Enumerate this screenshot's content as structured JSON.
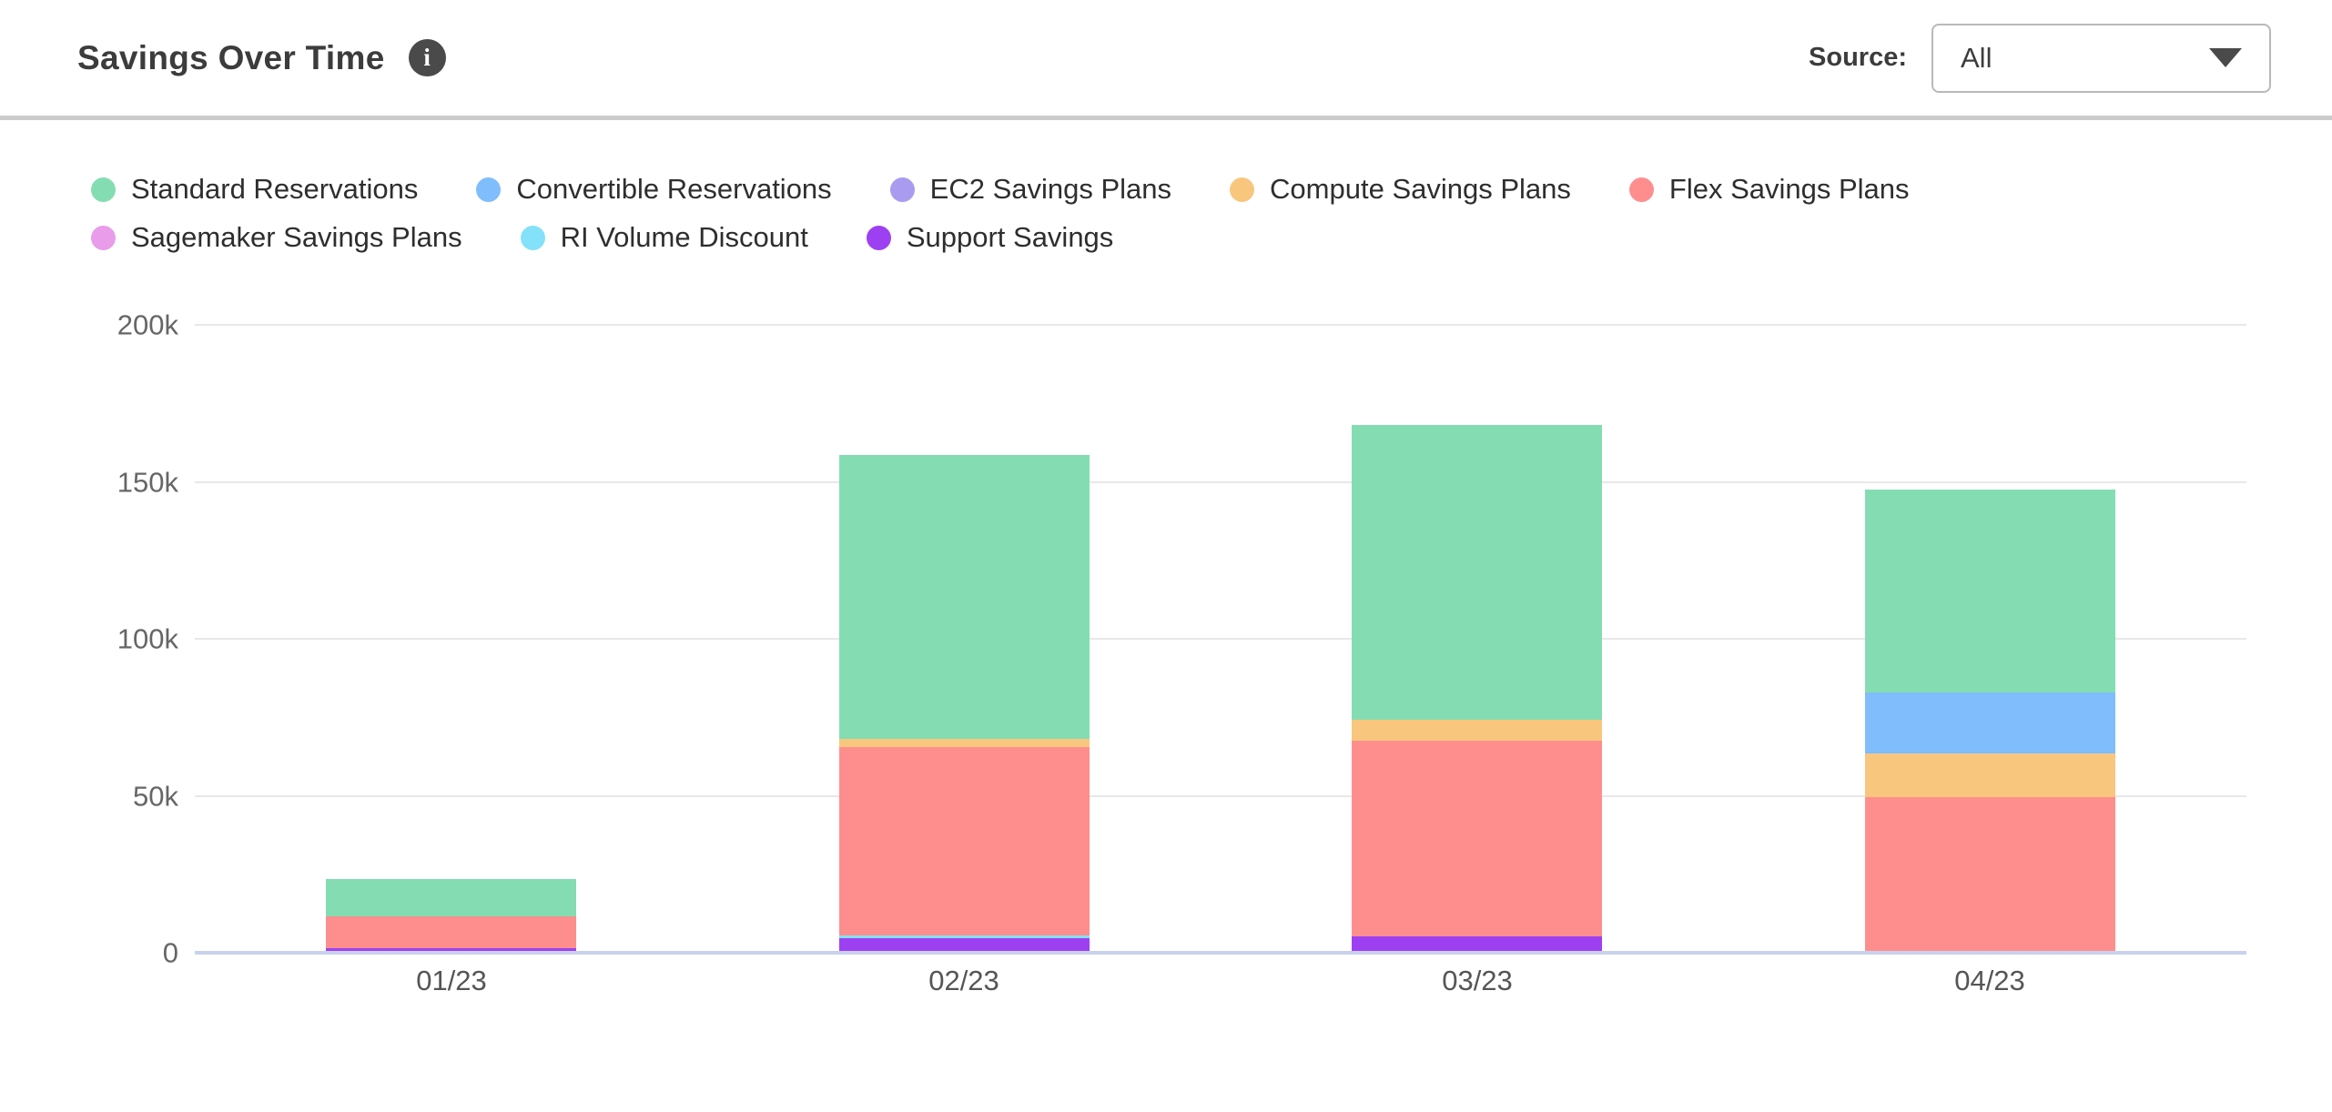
{
  "header": {
    "title": "Savings Over Time",
    "info_icon_glyph": "i",
    "source_label": "Source:",
    "source_value": "All"
  },
  "colors": {
    "axis_line": "#C9D1EC",
    "gridline": "#E8E8E8",
    "divider": "#CBCBCB",
    "info_icon_bg": "#4A4A4A"
  },
  "chart_data": {
    "type": "bar",
    "stacked": true,
    "grid": true,
    "legend_position": "top",
    "categories": [
      "01/23",
      "02/23",
      "03/23",
      "04/23"
    ],
    "ylim": [
      0,
      200000
    ],
    "y_ticks": [
      {
        "label": "0",
        "value": 0
      },
      {
        "label": "50k",
        "value": 50000
      },
      {
        "label": "100k",
        "value": 100000
      },
      {
        "label": "150k",
        "value": 150000
      },
      {
        "label": "200k",
        "value": 200000
      }
    ],
    "series": [
      {
        "name": "Standard Reservations",
        "color": "#84DDB2",
        "values": [
          12000,
          90500,
          94000,
          64500
        ]
      },
      {
        "name": "Convertible Reservations",
        "color": "#7FBDFD",
        "values": [
          0,
          0,
          0,
          19500
        ]
      },
      {
        "name": "EC2 Savings Plans",
        "color": "#A89BF0",
        "values": [
          0,
          0,
          0,
          0
        ]
      },
      {
        "name": "Compute Savings Plans",
        "color": "#F9C67E",
        "values": [
          0,
          2500,
          6500,
          14000
        ]
      },
      {
        "name": "Flex Savings Plans",
        "color": "#FE8E8E",
        "values": [
          10000,
          60000,
          62500,
          49500
        ]
      },
      {
        "name": "Sagemaker Savings Plans",
        "color": "#E89CE9",
        "values": [
          0,
          0,
          0,
          0
        ]
      },
      {
        "name": "RI Volume Discount",
        "color": "#83E2F9",
        "values": [
          0,
          1000,
          0,
          0
        ]
      },
      {
        "name": "Support Savings",
        "color": "#9D40F2",
        "values": [
          1500,
          4500,
          5000,
          0
        ]
      }
    ],
    "stack_order_bottom_to_top": [
      "Support Savings",
      "RI Volume Discount",
      "Flex Savings Plans",
      "Compute Savings Plans",
      "Convertible Reservations",
      "EC2 Savings Plans",
      "Sagemaker Savings Plans",
      "Standard Reservations"
    ],
    "totals": [
      23500,
      158500,
      168000,
      147500
    ]
  }
}
